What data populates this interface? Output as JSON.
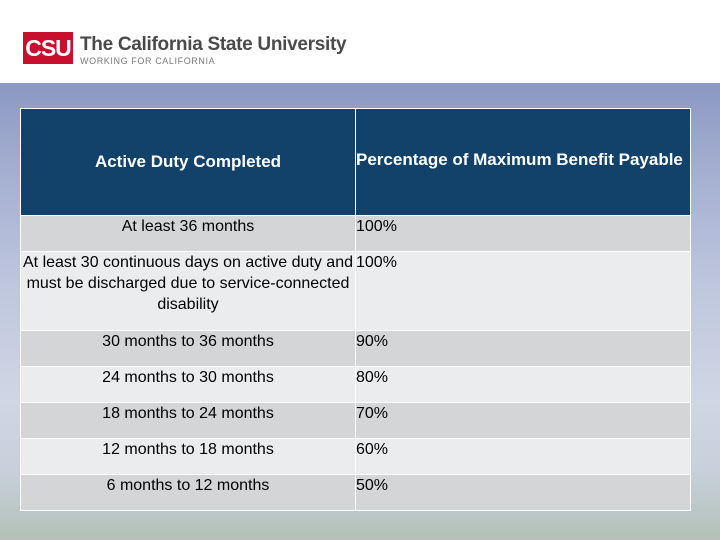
{
  "header": {
    "logo_abbr": "CSU",
    "logo_name": "The California State University",
    "logo_tagline": "WORKING FOR CALIFORNIA",
    "logo_color": "#c8102e"
  },
  "table": {
    "header_bg": "#12426a",
    "columns": [
      "Active Duty Completed",
      "Percentage of Maximum Benefit Payable"
    ],
    "rows": [
      {
        "duty": "At least 36 months",
        "percent": "100%"
      },
      {
        "duty": "At least 30 continuous days on active duty and must be discharged due to service-connected disability",
        "percent": "100%"
      },
      {
        "duty": "30 months to 36 months",
        "percent": "90%"
      },
      {
        "duty": "24 months to 30 months",
        "percent": "80%"
      },
      {
        "duty": "18 months to 24 months",
        "percent": "70%"
      },
      {
        "duty": "12 months to 18 months",
        "percent": "60%"
      },
      {
        "duty": "6 months to 12 months",
        "percent": "50%"
      }
    ]
  }
}
